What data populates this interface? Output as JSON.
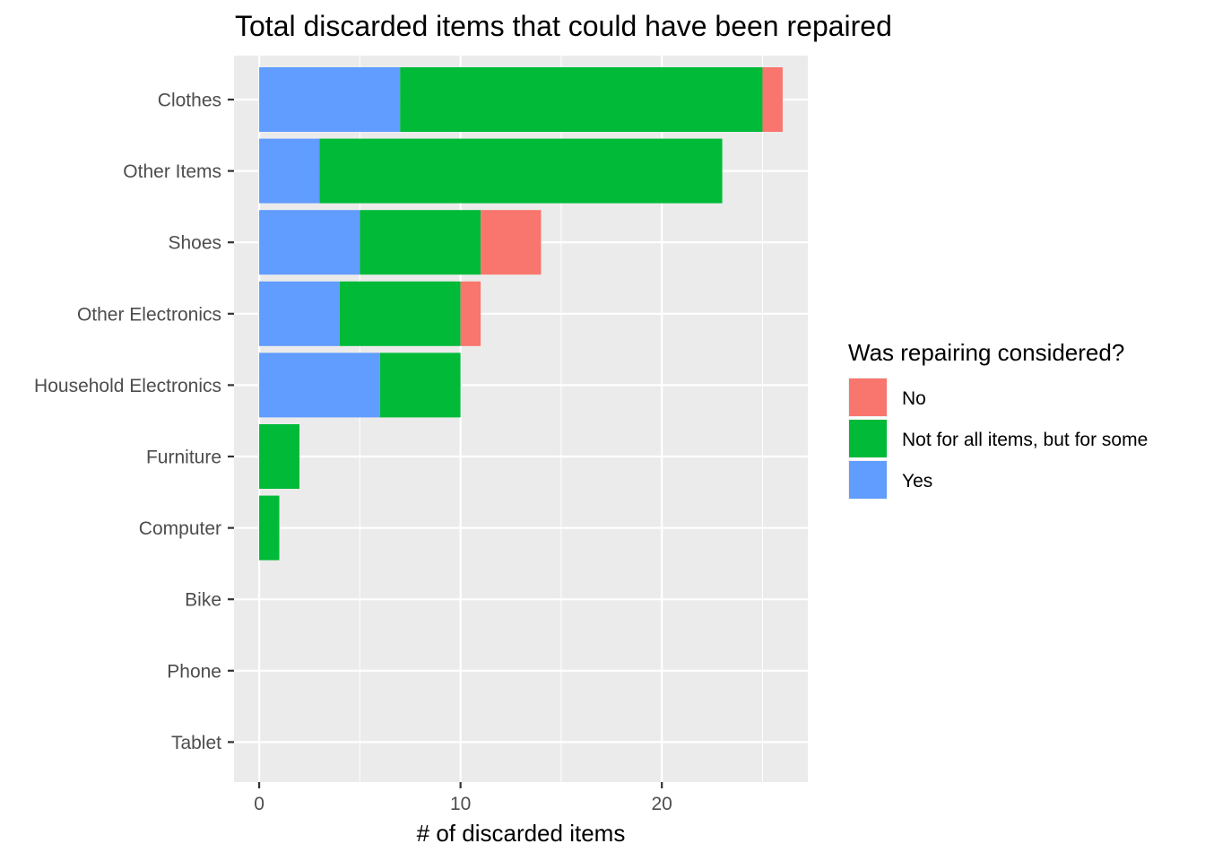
{
  "chart_data": {
    "type": "bar",
    "orientation": "horizontal",
    "stacked": true,
    "title": "Total discarded items that could have been repaired",
    "xlabel": "# of discarded items",
    "ylabel": "",
    "xlim": [
      -1.25,
      27.25
    ],
    "x_ticks": [
      0,
      10,
      20
    ],
    "grid": true,
    "legend_position": "right",
    "categories": [
      "Clothes",
      "Other Items",
      "Shoes",
      "Other Electronics",
      "Household Electronics",
      "Furniture",
      "Computer",
      "Bike",
      "Phone",
      "Tablet"
    ],
    "series": [
      {
        "name": "Yes",
        "color": "#619CFF",
        "values": [
          7,
          3,
          5,
          4,
          6,
          0,
          0,
          0,
          0,
          0
        ]
      },
      {
        "name": "Not for all items, but for some",
        "color": "#00BA38",
        "values": [
          18,
          20,
          6,
          6,
          4,
          2,
          1,
          0,
          0,
          0
        ]
      },
      {
        "name": "No",
        "color": "#F8766D",
        "values": [
          1,
          0,
          3,
          1,
          0,
          0,
          0,
          0,
          0,
          0
        ]
      }
    ],
    "legend": {
      "title": "Was repairing considered?",
      "entries": [
        {
          "label": "No",
          "color": "#F8766D"
        },
        {
          "label": "Not for all items, but for some",
          "color": "#00BA38"
        },
        {
          "label": "Yes",
          "color": "#619CFF"
        }
      ]
    }
  }
}
